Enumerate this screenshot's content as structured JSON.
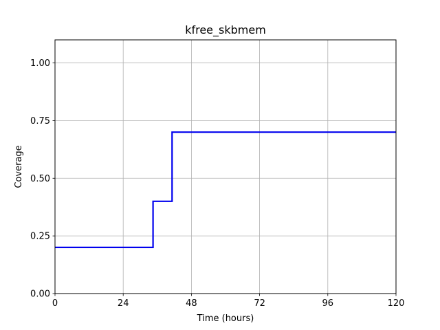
{
  "chart_data": {
    "type": "line",
    "title": "kfree_skbmem",
    "xlabel": "Time (hours)",
    "ylabel": "Coverage",
    "xlim": [
      0,
      120
    ],
    "ylim": [
      0,
      1.1
    ],
    "xticks": [
      0,
      24,
      48,
      72,
      96,
      120
    ],
    "xtick_labels": [
      "0",
      "24",
      "48",
      "72",
      "96",
      "120"
    ],
    "yticks": [
      0,
      0.25,
      0.5,
      0.75,
      1.0
    ],
    "ytick_labels": [
      "0.00",
      "0.25",
      "0.50",
      "0.75",
      "1.00"
    ],
    "grid": true,
    "series": [
      {
        "color": "#0000ee",
        "step": true,
        "x": [
          0,
          34.5,
          41.2,
          120
        ],
        "y": [
          0.2,
          0.4,
          0.7,
          0.7
        ]
      }
    ]
  }
}
